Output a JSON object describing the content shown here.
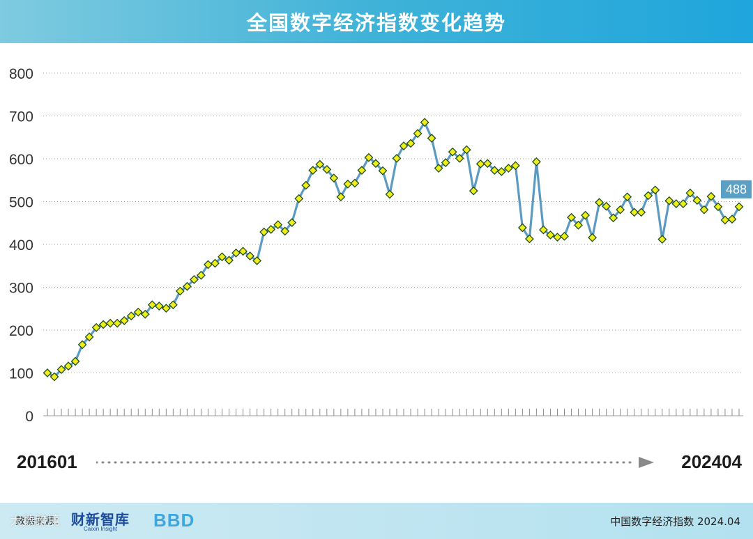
{
  "title": "全国数字经济指数变化趋势",
  "chart_data": {
    "type": "line",
    "title": "全国数字经济指数变化趋势",
    "xlabel": "",
    "ylabel": "",
    "ylim": [
      0,
      800
    ],
    "yticks": [
      0,
      100,
      200,
      300,
      400,
      500,
      600,
      700,
      800
    ],
    "x_start": "201601",
    "x_end": "202404",
    "last_value_label": "488",
    "grid": true,
    "line_color": "#5b9bc2",
    "marker_fill": "#f0ee1a",
    "marker_stroke": "#1e4d1e",
    "series": [
      {
        "values": [
          100,
          91,
          108,
          116,
          127,
          166,
          184,
          206,
          213,
          216,
          216,
          222,
          233,
          242,
          237,
          259,
          256,
          251,
          259,
          291,
          302,
          318,
          328,
          353,
          356,
          371,
          363,
          380,
          384,
          373,
          362,
          429,
          435,
          446,
          431,
          451,
          507,
          538,
          573,
          587,
          575,
          555,
          511,
          541,
          543,
          573,
          603,
          589,
          572,
          517,
          601,
          630,
          636,
          659,
          685,
          648,
          578,
          591,
          616,
          601,
          621,
          525,
          588,
          589,
          573,
          570,
          578,
          584,
          439,
          413,
          593,
          434,
          422,
          417,
          419,
          463,
          445,
          468,
          416,
          498,
          489,
          462,
          481,
          511,
          475,
          475,
          514,
          527,
          412,
          502,
          495,
          495,
          520,
          503,
          481,
          512,
          488,
          457,
          459,
          488
        ]
      }
    ]
  },
  "range": {
    "start": "201601",
    "end": "202404"
  },
  "footer": {
    "source_label": "数据来源：",
    "logo_caixin": "财新智库",
    "logo_caixin_sub": "Caixin Insight",
    "logo_bbd": "BBD",
    "caption": "中国数字经济指数 2024.04"
  },
  "watermark": "大数跨境"
}
